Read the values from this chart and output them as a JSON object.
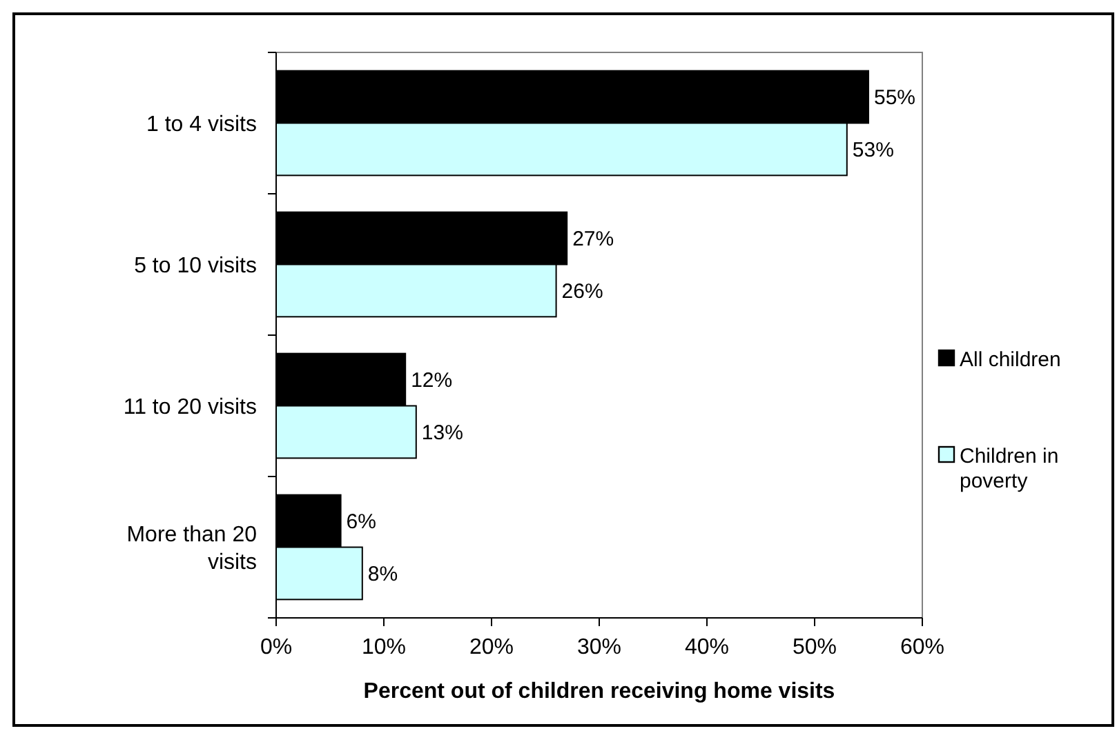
{
  "chart_data": {
    "type": "bar",
    "orientation": "horizontal",
    "categories": [
      "1 to 4 visits",
      "5 to 10 visits",
      "11 to 20 visits",
      "More than 20 visits"
    ],
    "series": [
      {
        "name": "All children",
        "color": "#000000",
        "values": [
          55,
          27,
          12,
          6
        ],
        "value_labels": [
          "55%",
          "27%",
          "12%",
          "6%"
        ]
      },
      {
        "name": "Children in poverty",
        "color": "#ccffff",
        "values": [
          53,
          26,
          13,
          8
        ],
        "value_labels": [
          "53%",
          "26%",
          "13%",
          "8%"
        ]
      }
    ],
    "xlabel": "Percent out of children receiving home visits",
    "xlim": [
      0,
      60
    ],
    "xticks": [
      {
        "value": 0,
        "label": "0%"
      },
      {
        "value": 10,
        "label": "10%"
      },
      {
        "value": 20,
        "label": "20%"
      },
      {
        "value": 30,
        "label": "30%"
      },
      {
        "value": 40,
        "label": "40%"
      },
      {
        "value": 50,
        "label": "50%"
      },
      {
        "value": 60,
        "label": "60%"
      }
    ],
    "legend": "right"
  }
}
